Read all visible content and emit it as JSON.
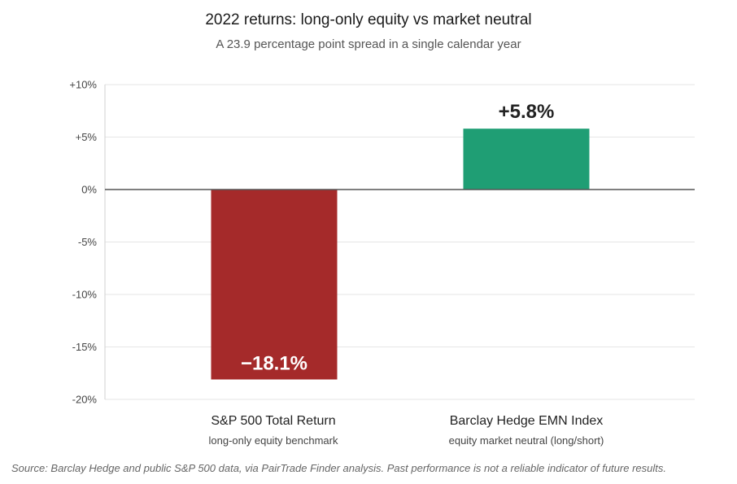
{
  "title": "2022 returns: long-only equity vs market neutral",
  "subtitle": "A 23.9 percentage point spread in a single calendar year",
  "source": "Source: Barclay Hedge and public S&P 500 data, via PairTrade Finder analysis. Past performance is not a reliable indicator of future results.",
  "chart_data": {
    "type": "bar",
    "categories": [
      "S&P 500 Total Return",
      "Barclay Hedge EMN Index"
    ],
    "category_subtitles": [
      "long-only equity benchmark",
      "equity market neutral (long/short)"
    ],
    "values": [
      -18.1,
      5.8
    ],
    "data_labels": [
      "−18.1%",
      "+5.8%"
    ],
    "colors": [
      "#a52a2a",
      "#1f9e74"
    ],
    "ylim": [
      -20,
      10
    ],
    "yticks": [
      10,
      5,
      0,
      -5,
      -10,
      -15,
      -20
    ],
    "ytick_labels": [
      "+10%",
      "+5%",
      "0%",
      "-5%",
      "-10%",
      "-15%",
      "-20%"
    ],
    "grid": true
  }
}
